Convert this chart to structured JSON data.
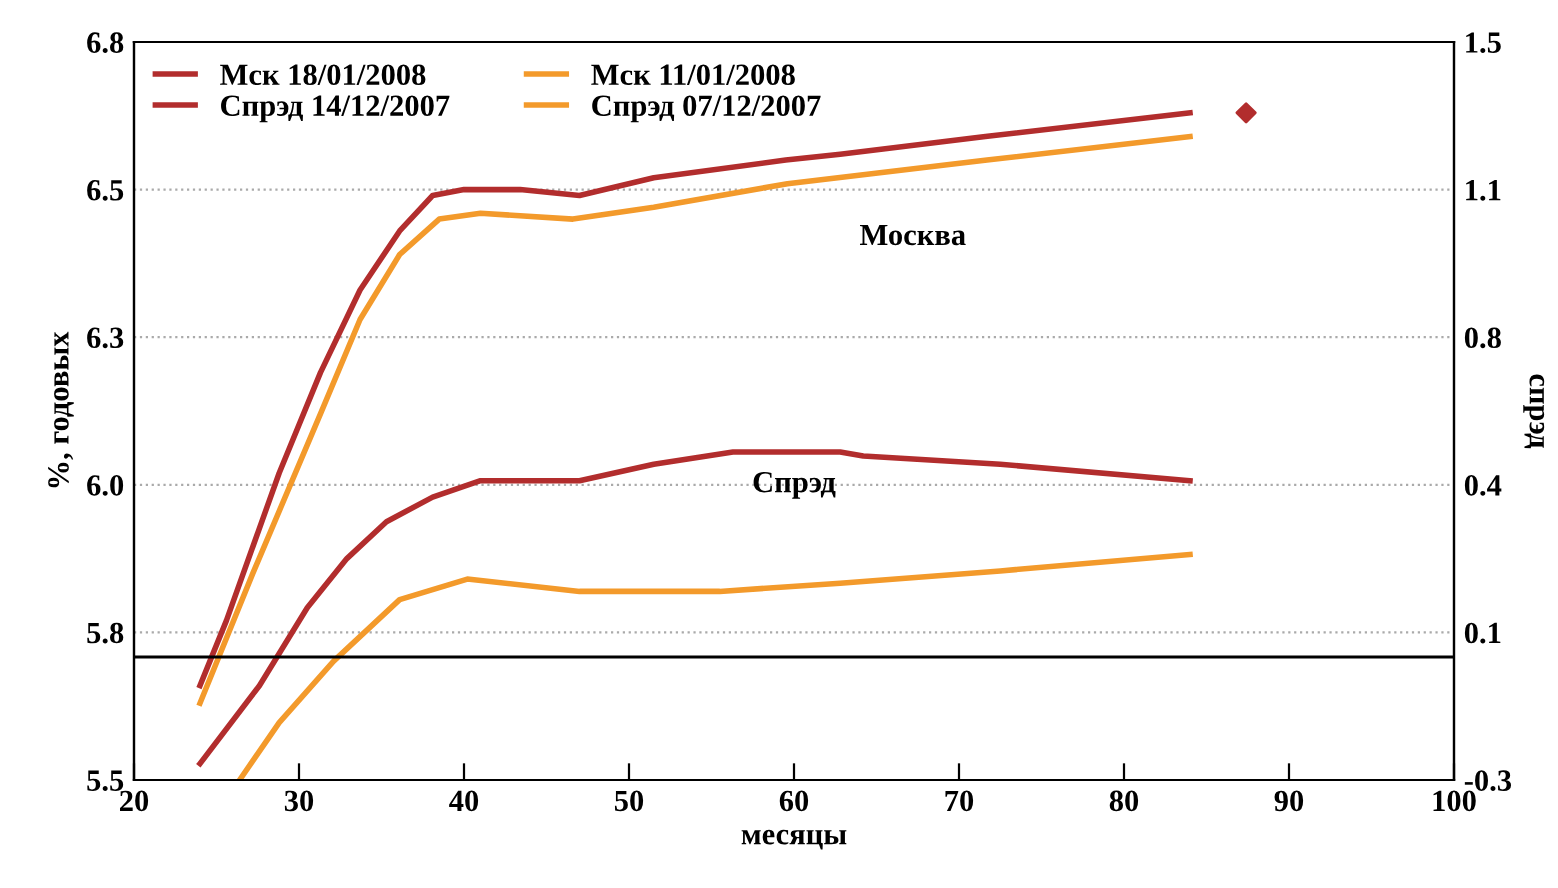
{
  "chart_data": {
    "type": "line",
    "xlabel": "месяцы",
    "ylabel": "%, годовых",
    "y2label": "спрэд",
    "xlim": [
      20,
      100
    ],
    "xticks": [
      20,
      30,
      40,
      50,
      60,
      70,
      80,
      90,
      100
    ],
    "ylim": [
      5.5,
      6.75
    ],
    "yticks": [
      5.5,
      {
        "value": 5.75,
        "label": "5.8"
      },
      {
        "value": 6.0,
        "label": "6.0"
      },
      {
        "value": 6.25,
        "label": "6.3"
      },
      6.5,
      {
        "value": 6.75,
        "label": "6.8"
      }
    ],
    "y2lim": [
      -0.3,
      1.5
    ],
    "y2ticks": [
      -0.3,
      {
        "value": 0.06,
        "label": "0.1"
      },
      {
        "value": 0.42,
        "label": "0.4"
      },
      {
        "value": 0.78,
        "label": "0.8"
      },
      {
        "value": 1.14,
        "label": "1.1"
      },
      1.5
    ],
    "grid": "y",
    "legend": "top left",
    "marker": "none",
    "line_style": "solid",
    "series": [
      {
        "name": "Мск 18/01/2008",
        "color": "#b22d2d",
        "x": [
          24,
          25.6,
          28.8,
          31.3,
          33.7,
          36.1,
          38.1,
          40,
          43.4,
          47,
          51.5,
          59.5,
          62.8,
          71.6,
          84
        ],
        "values": [
          5.66,
          5.77,
          6.02,
          6.19,
          6.33,
          6.43,
          6.49,
          6.5,
          6.5,
          6.49,
          6.52,
          6.55,
          6.56,
          6.59,
          6.63
        ]
      },
      {
        "name": "Мск 11/01/2008",
        "color": "#f39a2b",
        "x": [
          24,
          27.2,
          31.3,
          33.7,
          36.1,
          38.5,
          41,
          46.6,
          51.5,
          59.6,
          71.7,
          84
        ],
        "values": [
          5.63,
          5.85,
          6.12,
          6.28,
          6.39,
          6.45,
          6.46,
          6.45,
          6.47,
          6.51,
          6.55,
          6.59
        ]
      },
      {
        "name": "Спрэд 14/12/2007",
        "color": "#b22d2d",
        "axis": "y2",
        "x": [
          24,
          27.6,
          30.5,
          32.9,
          35.3,
          38.1,
          41,
          47,
          51.5,
          56.3,
          62.8,
          64.2,
          72.5,
          84
        ],
        "values": [
          -0.26,
          -0.07,
          0.12,
          0.24,
          0.33,
          0.39,
          0.43,
          0.43,
          0.47,
          0.5,
          0.5,
          0.49,
          0.47,
          0.43
        ]
      },
      {
        "name": "Спрэд 07/12/2007",
        "color": "#f39a2b",
        "axis": "y2",
        "x": [
          26.4,
          28.8,
          32.1,
          36.1,
          40.2,
          47,
          55.5,
          62.8,
          72.5,
          84
        ],
        "values": [
          -0.3,
          -0.16,
          -0.01,
          0.14,
          0.19,
          0.16,
          0.16,
          0.18,
          0.21,
          0.25
        ]
      },
      {
        "type": "scatter",
        "marker": "diamond",
        "color": "#b22d2d",
        "x": [
          87.4
        ],
        "values": [
          6.63
        ]
      }
    ],
    "ref_lines": [
      {
        "axis": "y2",
        "value": 0,
        "color": "#000000"
      }
    ],
    "annotations": [
      "Москва",
      "Спрэд"
    ]
  }
}
